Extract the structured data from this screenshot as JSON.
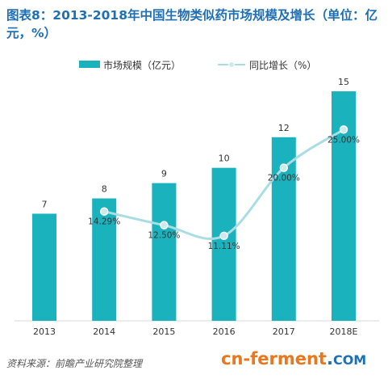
{
  "title": "图表8：2013-2018年中国生物类似药市场规模及增长（单位：亿元，%）",
  "legend": {
    "bar_label": "市场规模（亿元）",
    "line_label": "同比增长（%）"
  },
  "colors": {
    "bar": "#1ab3bd",
    "line": "#a9dde3",
    "marker_fill": "#cde9ee",
    "title": "#1f6fb5"
  },
  "chart_data": {
    "type": "bar",
    "categories": [
      "2013",
      "2014",
      "2015",
      "2016",
      "2017",
      "2018E"
    ],
    "series": [
      {
        "name": "市场规模（亿元）",
        "type": "bar",
        "values": [
          7,
          8,
          9,
          10,
          12,
          15
        ],
        "labels": [
          "7",
          "8",
          "9",
          "10",
          "12",
          "15"
        ]
      },
      {
        "name": "同比增长（%）",
        "type": "line",
        "values": [
          null,
          14.29,
          12.5,
          11.11,
          20.0,
          25.0
        ],
        "labels": [
          "",
          "14.29%",
          "12.50%",
          "11.11%",
          "20.00%",
          "25.00%"
        ]
      }
    ],
    "ylim": [
      0,
      15
    ],
    "y2lim": [
      0,
      25
    ],
    "legend_position": "top"
  },
  "footer": "资料来源：前瞻产业研究院整理",
  "watermark": {
    "part1": "cn-ferment",
    "part2": ".",
    "part3": "COM"
  }
}
